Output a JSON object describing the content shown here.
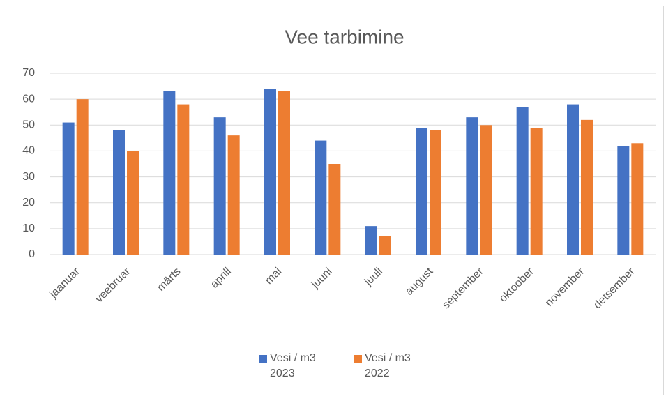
{
  "chart_data": {
    "type": "bar",
    "title": "Vee tarbimine",
    "categories": [
      "jaanuar",
      "veebruar",
      "märts",
      "aprill",
      "mai",
      "juuni",
      "juuli",
      "august",
      "september",
      "oktoober",
      "november",
      "detsember"
    ],
    "series": [
      {
        "name": "Vesi / m3 2023",
        "color": "#4472c4",
        "values": [
          51,
          48,
          63,
          53,
          64,
          44,
          11,
          49,
          53,
          57,
          58,
          42
        ]
      },
      {
        "name": "Vesi / m3 2022",
        "color": "#ed7d31",
        "values": [
          60,
          40,
          58,
          46,
          63,
          35,
          7,
          48,
          50,
          49,
          52,
          43
        ]
      }
    ],
    "ylim": [
      0,
      70
    ],
    "yticks": [
      0,
      10,
      20,
      30,
      40,
      50,
      60,
      70
    ],
    "grid": true,
    "legend": "bottom"
  }
}
